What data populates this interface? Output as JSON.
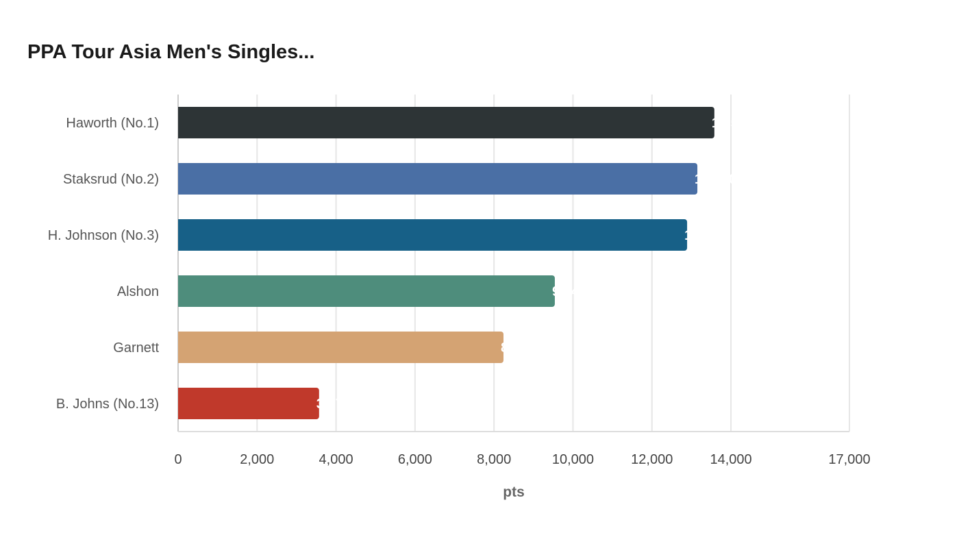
{
  "chart_data": {
    "type": "bar",
    "orientation": "horizontal",
    "title": "PPA Tour Asia Men's Singles...",
    "xlabel": "pts",
    "ylabel": "",
    "categories": [
      "Haworth (No.1)",
      "Staksrud (No.2)",
      "H. Johnson (No.3)",
      "Alshon",
      "Garnett",
      "B. Johns (No.13)"
    ],
    "values": [
      13580,
      13150,
      12890,
      9540,
      8240,
      3570
    ],
    "colors": [
      "#2d3436",
      "#4a6fa5",
      "#176087",
      "#4e8d7c",
      "#d4a373",
      "#c0392b"
    ],
    "xlim": [
      0,
      17000
    ],
    "xticks": [
      0,
      2000,
      4000,
      6000,
      8000,
      10000,
      12000,
      14000,
      17000
    ],
    "xtick_labels": [
      "0",
      "2,000",
      "4,000",
      "6,000",
      "8,000",
      "10,000",
      "12,000",
      "14,000",
      "17,000"
    ],
    "data_labels": [
      "13,580",
      "13,150",
      "12,890",
      "9,540",
      "8,240",
      "3,570"
    ],
    "grid": true,
    "legend": "none"
  }
}
